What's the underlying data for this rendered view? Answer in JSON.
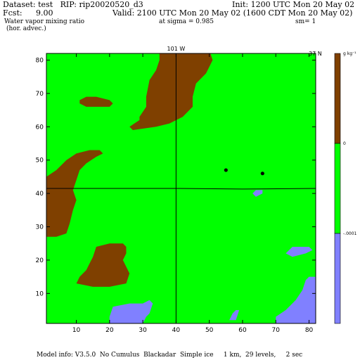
{
  "header": {
    "dataset": "Dataset: test   RIP: rip20020520_d3",
    "init": "Init: 1200 UTC Mon 20 May 02",
    "fcst_label": "Fcst:",
    "fcst_value": "9.00",
    "valid": "Valid: 2100 UTC Mon 20 May 02 (1600 CDT Mon 20 May 02)",
    "field": "Water vapor mixing ratio",
    "sigma": "at sigma = 0.985",
    "sm": "sm= 1",
    "subfield": "(hor. advec.)"
  },
  "footer": {
    "model_info": "Model info: V3.5.0  No Cumulus  Blackadar  Simple ice     1 km,  29 levels,     2 sec"
  },
  "colors": {
    "positive": "#7f4000",
    "zero": "#00ff00",
    "negative": "#8080ff",
    "frame": "#000000"
  },
  "chart_data": {
    "type": "heatmap",
    "title": "Water vapor mixing ratio (hor. advec.) at sigma = 0.985",
    "top_labels": [
      "101 W",
      "37 N"
    ],
    "x_ticks": [
      10,
      20,
      30,
      40,
      50,
      60,
      70,
      80
    ],
    "y_ticks": [
      10,
      20,
      30,
      40,
      50,
      60,
      70,
      80
    ],
    "xlim": [
      1,
      82
    ],
    "ylim": [
      1,
      82
    ],
    "colorbar": {
      "unit": "g kg⁻¹",
      "levels": [
        "0",
        "-.0001"
      ],
      "bins": [
        {
          "range": "> 0",
          "color": "#7f4000"
        },
        {
          "range": "-.0001 to 0",
          "color": "#00ff00"
        },
        {
          "range": "< -.0001",
          "color": "#8080ff"
        }
      ]
    },
    "background_category": "-.0001 to 0",
    "regions": [
      {
        "name": "brown-region-north",
        "category": "> 0",
        "points": [
          [
            35,
            83
          ],
          [
            50,
            83
          ],
          [
            51,
            80
          ],
          [
            49,
            76
          ],
          [
            46,
            73
          ],
          [
            45,
            69
          ],
          [
            45,
            66
          ],
          [
            42,
            63
          ],
          [
            38,
            61
          ],
          [
            34,
            60
          ],
          [
            27,
            59
          ],
          [
            26,
            60
          ],
          [
            29,
            62
          ],
          [
            29,
            63
          ],
          [
            31,
            66
          ],
          [
            31,
            69
          ],
          [
            32,
            74
          ],
          [
            34,
            77
          ],
          [
            35,
            80
          ]
        ]
      },
      {
        "name": "brown-region-small-north",
        "category": "> 0",
        "points": [
          [
            11,
            68
          ],
          [
            13,
            69
          ],
          [
            16,
            69
          ],
          [
            20,
            68
          ],
          [
            21,
            67
          ],
          [
            20,
            66
          ],
          [
            17,
            66
          ],
          [
            13,
            66
          ],
          [
            11,
            67
          ]
        ]
      },
      {
        "name": "brown-region-west",
        "category": "> 0",
        "points": [
          [
            1,
            45
          ],
          [
            4,
            47
          ],
          [
            7,
            50
          ],
          [
            10,
            52
          ],
          [
            14,
            53
          ],
          [
            17,
            53
          ],
          [
            18,
            52
          ],
          [
            16,
            51
          ],
          [
            13,
            49
          ],
          [
            11,
            47
          ],
          [
            10,
            44
          ],
          [
            9,
            41
          ],
          [
            10,
            38
          ],
          [
            9,
            35
          ],
          [
            8,
            31
          ],
          [
            7,
            28
          ],
          [
            4,
            27
          ],
          [
            1,
            27
          ]
        ]
      },
      {
        "name": "brown-region-south",
        "category": "> 0",
        "points": [
          [
            13,
            17
          ],
          [
            15,
            21
          ],
          [
            16,
            24
          ],
          [
            20,
            25
          ],
          [
            24,
            25
          ],
          [
            25,
            24
          ],
          [
            25,
            22
          ],
          [
            24,
            20
          ],
          [
            25,
            18
          ],
          [
            26,
            16
          ],
          [
            25,
            13
          ],
          [
            20,
            12
          ],
          [
            15,
            12
          ],
          [
            10,
            13
          ],
          [
            11,
            15
          ]
        ]
      },
      {
        "name": "blue-region-southwest",
        "category": "< -.0001",
        "points": [
          [
            20,
            3
          ],
          [
            21,
            6
          ],
          [
            26,
            7
          ],
          [
            30,
            7
          ],
          [
            32,
            8
          ],
          [
            33,
            7
          ],
          [
            32,
            4
          ],
          [
            31,
            3
          ],
          [
            30,
            1
          ],
          [
            20,
            1
          ]
        ]
      },
      {
        "name": "blue-region-southeast",
        "category": "< -.0001",
        "points": [
          [
            70,
            1
          ],
          [
            83,
            1
          ],
          [
            83,
            15
          ],
          [
            80,
            15
          ],
          [
            79,
            14
          ],
          [
            78,
            11
          ],
          [
            76,
            8
          ],
          [
            73,
            5
          ],
          [
            70,
            3
          ]
        ]
      },
      {
        "name": "blue-region-center-south",
        "category": "< -.0001",
        "points": [
          [
            56,
            2
          ],
          [
            57,
            4
          ],
          [
            58,
            5
          ],
          [
            59,
            5
          ],
          [
            58,
            2
          ]
        ]
      },
      {
        "name": "blue-region-east-1",
        "category": "< -.0001",
        "points": [
          [
            73,
            22
          ],
          [
            75,
            24
          ],
          [
            80,
            24
          ],
          [
            81,
            23
          ],
          [
            79,
            22
          ],
          [
            75,
            21
          ]
        ]
      },
      {
        "name": "blue-region-east-2",
        "category": "< -.0001",
        "points": [
          [
            63,
            40
          ],
          [
            64,
            41
          ],
          [
            66,
            41
          ],
          [
            66,
            40
          ],
          [
            64,
            39
          ]
        ]
      },
      {
        "name": "blue-region-se-corner-small",
        "category": "< -.0001",
        "points": [
          [
            78,
            5
          ],
          [
            81,
            5
          ],
          [
            83,
            4
          ],
          [
            83,
            3
          ],
          [
            80,
            3
          ]
        ]
      }
    ],
    "markers": [
      [
        55,
        47
      ],
      [
        66,
        46
      ]
    ],
    "reference_lines": [
      {
        "name": "longitude-line",
        "points": [
          [
            40,
            1
          ],
          [
            40,
            83
          ]
        ]
      },
      {
        "name": "latitude-line",
        "points": [
          [
            1,
            41.5
          ],
          [
            40,
            41.5
          ],
          [
            60,
            41.3
          ],
          [
            83,
            41.5
          ]
        ]
      }
    ]
  }
}
